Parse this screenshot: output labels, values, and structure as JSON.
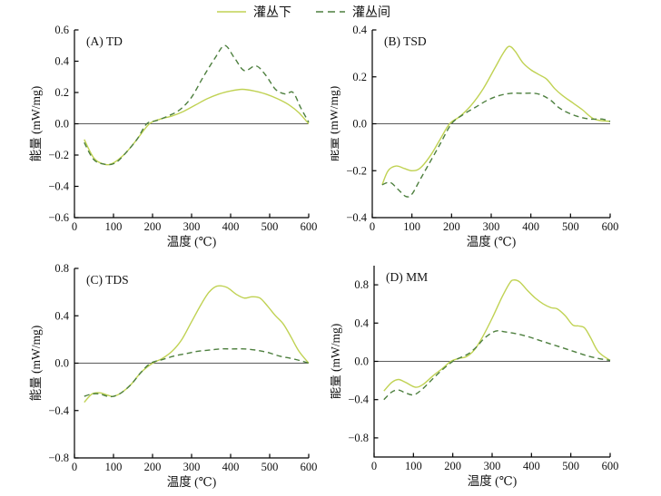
{
  "legend": {
    "items": [
      {
        "label": "灌丛下",
        "style": "solid",
        "color": "#c0d253"
      },
      {
        "label": "灌丛间",
        "style": "dashed",
        "color": "#4d7f3e"
      }
    ]
  },
  "style": {
    "axis_color": "#000000",
    "zero_line_color": "#5a5a5a",
    "text_color": "#111111"
  },
  "chart_data": [
    {
      "type": "line",
      "title": "(A) TD",
      "xlabel": "温度 (℃)",
      "ylabel": "能量 (mW/mg)",
      "xlim": [
        0,
        600
      ],
      "ylim": [
        -0.6,
        0.6
      ],
      "xticks": [
        0,
        100,
        200,
        300,
        400,
        500,
        600
      ],
      "yticks": [
        -0.6,
        -0.4,
        -0.2,
        0.0,
        0.2,
        0.4,
        0.6
      ],
      "zero_line": true,
      "legend_position": "none",
      "grid": false,
      "series": [
        {
          "name": "灌丛下",
          "style": "solid",
          "color": "#c0d253",
          "x": [
            25,
            50,
            78,
            100,
            130,
            160,
            192,
            220,
            250,
            280,
            310,
            340,
            370,
            400,
            430,
            460,
            490,
            520,
            550,
            575,
            600
          ],
          "y": [
            -0.1,
            -0.22,
            -0.26,
            -0.25,
            -0.19,
            -0.1,
            0.0,
            0.03,
            0.05,
            0.08,
            0.12,
            0.16,
            0.19,
            0.21,
            0.22,
            0.21,
            0.19,
            0.16,
            0.12,
            0.07,
            0.0
          ]
        },
        {
          "name": "灌丛间",
          "style": "dashed",
          "color": "#4d7f3e",
          "x": [
            25,
            50,
            80,
            105,
            130,
            160,
            185,
            210,
            240,
            270,
            300,
            330,
            360,
            385,
            410,
            435,
            465,
            490,
            515,
            540,
            560,
            580,
            600
          ],
          "y": [
            -0.12,
            -0.23,
            -0.26,
            -0.25,
            -0.19,
            -0.1,
            0.0,
            0.02,
            0.05,
            0.09,
            0.17,
            0.3,
            0.42,
            0.5,
            0.42,
            0.34,
            0.37,
            0.31,
            0.22,
            0.19,
            0.2,
            0.1,
            0.01
          ]
        }
      ]
    },
    {
      "type": "line",
      "title": "(B) TSD",
      "xlabel": "温度 (℃)",
      "ylabel": "能量 (mW/mg)",
      "xlim": [
        0,
        600
      ],
      "ylim": [
        -0.4,
        0.4
      ],
      "xticks": [
        0,
        100,
        200,
        300,
        400,
        500,
        600
      ],
      "yticks": [
        -0.4,
        -0.2,
        0.0,
        0.2,
        0.4
      ],
      "zero_line": true,
      "legend_position": "none",
      "grid": false,
      "series": [
        {
          "name": "灌丛下",
          "style": "solid",
          "color": "#c0d253",
          "x": [
            25,
            40,
            60,
            80,
            100,
            120,
            145,
            170,
            195,
            220,
            250,
            280,
            310,
            330,
            345,
            360,
            380,
            400,
            420,
            440,
            460,
            480,
            505,
            530,
            560,
            600
          ],
          "y": [
            -0.26,
            -0.2,
            -0.18,
            -0.19,
            -0.2,
            -0.19,
            -0.14,
            -0.07,
            0.0,
            0.03,
            0.08,
            0.15,
            0.24,
            0.3,
            0.33,
            0.31,
            0.26,
            0.23,
            0.21,
            0.19,
            0.15,
            0.12,
            0.09,
            0.06,
            0.02,
            0.01
          ]
        },
        {
          "name": "灌丛间",
          "style": "dashed",
          "color": "#4d7f3e",
          "x": [
            25,
            45,
            65,
            85,
            100,
            120,
            140,
            170,
            200,
            230,
            260,
            290,
            320,
            350,
            380,
            410,
            430,
            450,
            470,
            490,
            520,
            550,
            580,
            600
          ],
          "y": [
            -0.26,
            -0.25,
            -0.28,
            -0.31,
            -0.3,
            -0.24,
            -0.18,
            -0.09,
            0.0,
            0.04,
            0.07,
            0.1,
            0.12,
            0.13,
            0.13,
            0.13,
            0.12,
            0.1,
            0.07,
            0.05,
            0.03,
            0.02,
            0.02,
            0.01
          ]
        }
      ]
    },
    {
      "type": "line",
      "title": "(C) TDS",
      "xlabel": "温度 (℃)",
      "ylabel": "能量 (mW/mg)",
      "xlim": [
        0,
        600
      ],
      "ylim": [
        -0.8,
        0.8
      ],
      "xticks": [
        0,
        100,
        200,
        300,
        400,
        500,
        600
      ],
      "yticks": [
        -0.8,
        -0.4,
        0.0,
        0.4,
        0.8
      ],
      "zero_line": true,
      "legend_position": "none",
      "grid": false,
      "series": [
        {
          "name": "灌丛下",
          "style": "solid",
          "color": "#c0d253",
          "x": [
            25,
            45,
            65,
            85,
            100,
            120,
            145,
            170,
            200,
            225,
            250,
            275,
            300,
            325,
            345,
            365,
            390,
            415,
            435,
            455,
            475,
            495,
            515,
            535,
            555,
            575,
            600
          ],
          "y": [
            -0.33,
            -0.26,
            -0.25,
            -0.27,
            -0.28,
            -0.25,
            -0.18,
            -0.08,
            0.0,
            0.04,
            0.1,
            0.2,
            0.35,
            0.5,
            0.6,
            0.65,
            0.64,
            0.58,
            0.55,
            0.56,
            0.55,
            0.48,
            0.4,
            0.33,
            0.22,
            0.1,
            0.0
          ]
        },
        {
          "name": "灌丛间",
          "style": "dashed",
          "color": "#4d7f3e",
          "x": [
            25,
            45,
            65,
            85,
            100,
            120,
            145,
            170,
            195,
            225,
            255,
            285,
            315,
            345,
            375,
            405,
            435,
            465,
            495,
            525,
            555,
            580,
            600
          ],
          "y": [
            -0.28,
            -0.26,
            -0.26,
            -0.28,
            -0.28,
            -0.25,
            -0.18,
            -0.08,
            0.0,
            0.03,
            0.06,
            0.08,
            0.1,
            0.11,
            0.12,
            0.12,
            0.12,
            0.11,
            0.09,
            0.06,
            0.04,
            0.02,
            0.0
          ]
        }
      ]
    },
    {
      "type": "line",
      "title": "(D) MM",
      "xlabel": "温度 (℃)",
      "ylabel": "能量 (mW/mg)",
      "xlim": [
        0,
        600
      ],
      "ylim": [
        -1.0,
        1.0
      ],
      "xticks": [
        0,
        100,
        200,
        300,
        400,
        500,
        600
      ],
      "yticks": [
        -0.8,
        -0.4,
        0.0,
        0.4,
        0.8
      ],
      "zero_line": true,
      "legend_position": "none",
      "grid": false,
      "series": [
        {
          "name": "灌丛下",
          "style": "solid",
          "color": "#c0d253",
          "x": [
            25,
            45,
            62,
            80,
            105,
            125,
            150,
            175,
            195,
            215,
            235,
            255,
            275,
            300,
            325,
            345,
            355,
            370,
            390,
            410,
            430,
            450,
            465,
            485,
            505,
            520,
            535,
            550,
            570,
            600
          ],
          "y": [
            -0.31,
            -0.22,
            -0.19,
            -0.22,
            -0.27,
            -0.24,
            -0.15,
            -0.07,
            0.0,
            0.03,
            0.05,
            0.12,
            0.25,
            0.45,
            0.67,
            0.82,
            0.85,
            0.83,
            0.74,
            0.66,
            0.6,
            0.56,
            0.55,
            0.48,
            0.38,
            0.37,
            0.35,
            0.25,
            0.1,
            0.01
          ]
        },
        {
          "name": "灌丛间",
          "style": "dashed",
          "color": "#4d7f3e",
          "x": [
            25,
            45,
            62,
            80,
            100,
            120,
            145,
            170,
            200,
            220,
            240,
            260,
            280,
            300,
            315,
            330,
            360,
            390,
            420,
            450,
            480,
            510,
            540,
            570,
            600
          ],
          "y": [
            -0.4,
            -0.32,
            -0.3,
            -0.33,
            -0.35,
            -0.3,
            -0.2,
            -0.1,
            0.0,
            0.04,
            0.08,
            0.15,
            0.24,
            0.3,
            0.32,
            0.31,
            0.29,
            0.26,
            0.22,
            0.18,
            0.14,
            0.1,
            0.06,
            0.03,
            0.01
          ]
        }
      ]
    }
  ]
}
